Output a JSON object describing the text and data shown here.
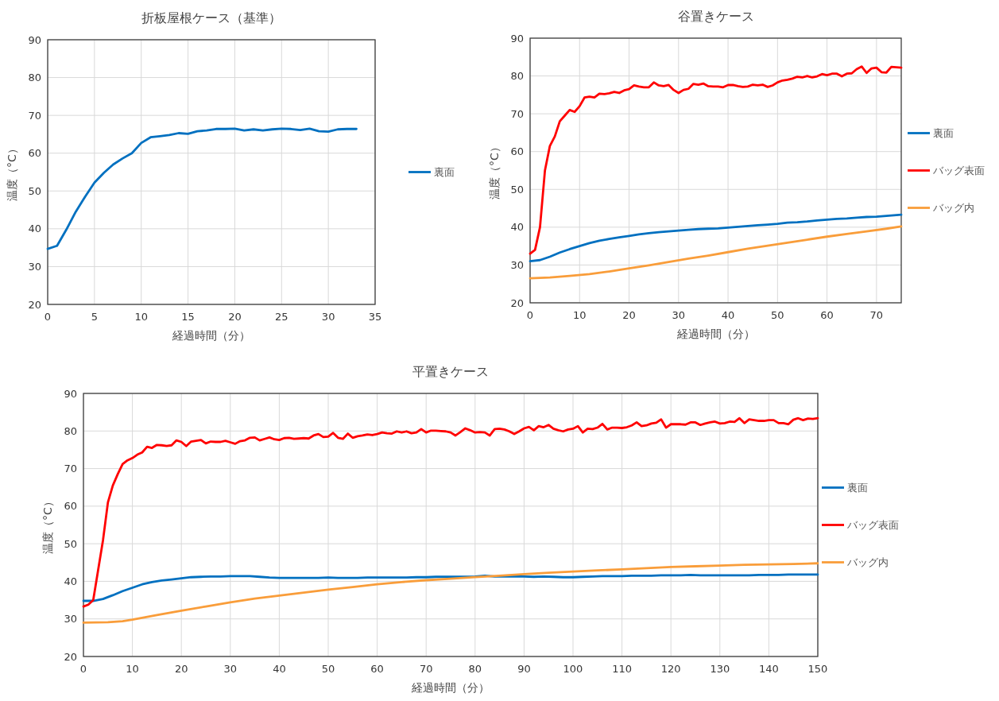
{
  "chart_data": [
    {
      "type": "line",
      "title": "折板屋根ケース（基準）",
      "xlabel": "経過時間（分）",
      "ylabel": "温度（°C）",
      "xlim": [
        0,
        35
      ],
      "xticks": [
        0,
        5,
        10,
        15,
        20,
        25,
        30,
        35
      ],
      "ylim": [
        20,
        90
      ],
      "yticks": [
        20,
        30,
        40,
        50,
        60,
        70,
        80,
        90
      ],
      "grid": true,
      "legend": "right",
      "series": [
        {
          "name": "裏面",
          "color": "#0070c0",
          "x": [
            0,
            1,
            2,
            3,
            4,
            5,
            6,
            7,
            8,
            9,
            10,
            11,
            12,
            13,
            14,
            15,
            16,
            17,
            18,
            19,
            20,
            21,
            22,
            23,
            24,
            25,
            26,
            27,
            28,
            29,
            30,
            31,
            32,
            33
          ],
          "values": [
            34.7,
            35.5,
            39.8,
            44.5,
            48.5,
            52.2,
            54.8,
            57,
            58.6,
            60,
            62.7,
            64.2,
            64.5,
            64.8,
            65.3,
            65.1,
            65.8,
            66,
            66.4,
            66.4,
            66.5,
            66,
            66.3,
            66,
            66.3,
            66.5,
            66.4,
            66.1,
            66.5,
            65.8,
            65.7,
            66.3,
            66.4,
            66.4
          ]
        }
      ]
    },
    {
      "type": "line",
      "title": "谷置きケース",
      "xlabel": "経過時間（分）",
      "ylabel": "温度（°C）",
      "xlim": [
        0,
        75
      ],
      "xticks": [
        0,
        10,
        20,
        30,
        40,
        50,
        60,
        70
      ],
      "ylim": [
        20,
        90
      ],
      "yticks": [
        20,
        30,
        40,
        50,
        60,
        70,
        80,
        90
      ],
      "grid": true,
      "legend": "right",
      "series": [
        {
          "name": "裏面",
          "color": "#0070c0",
          "x": [
            0,
            2,
            4,
            6,
            8,
            10,
            12,
            14,
            16,
            18,
            20,
            22,
            24,
            26,
            28,
            30,
            32,
            34,
            36,
            38,
            40,
            42,
            44,
            46,
            48,
            50,
            52,
            54,
            56,
            58,
            60,
            62,
            64,
            66,
            68,
            70,
            72,
            75
          ],
          "values": [
            31,
            31.3,
            32.2,
            33.3,
            34.2,
            35,
            35.8,
            36.4,
            36.9,
            37.3,
            37.7,
            38.1,
            38.4,
            38.7,
            38.9,
            39.1,
            39.3,
            39.5,
            39.6,
            39.7,
            39.9,
            40.1,
            40.3,
            40.5,
            40.7,
            40.9,
            41.2,
            41.3,
            41.5,
            41.8,
            42,
            42.2,
            42.3,
            42.5,
            42.7,
            42.8,
            43,
            43.3
          ]
        },
        {
          "name": "バッグ表面",
          "color": "#ff0000",
          "x": [
            0,
            1,
            2,
            3,
            4,
            5,
            6,
            7,
            8,
            9,
            10,
            11,
            12,
            13,
            14,
            15,
            16,
            17,
            18,
            19,
            20,
            21,
            22,
            23,
            24,
            25,
            26,
            27,
            28,
            29,
            30,
            31,
            32,
            33,
            34,
            35,
            36,
            37,
            38,
            39,
            40,
            41,
            42,
            43,
            44,
            45,
            46,
            47,
            48,
            49,
            50,
            51,
            52,
            53,
            54,
            55,
            56,
            57,
            58,
            59,
            60,
            61,
            62,
            63,
            64,
            65,
            66,
            67,
            68,
            69,
            70,
            71,
            72,
            73,
            74,
            75
          ],
          "values": [
            33,
            34,
            40,
            55,
            61.5,
            64,
            68,
            69.5,
            71,
            70.5,
            72,
            74.3,
            74.5,
            74.3,
            75.3,
            75.2,
            75.4,
            75.8,
            75.5,
            76.2,
            76.5,
            77.5,
            77.2,
            77,
            77,
            78.3,
            77.5,
            77.3,
            77.6,
            76.3,
            75.5,
            76.3,
            76.6,
            77.9,
            77.7,
            78,
            77.3,
            77.2,
            77.2,
            77,
            77.6,
            77.6,
            77.3,
            77.1,
            77.2,
            77.7,
            77.5,
            77.7,
            77.1,
            77.5,
            78.3,
            78.8,
            79,
            79.3,
            79.8,
            79.6,
            80,
            79.6,
            79.9,
            80.5,
            80.2,
            80.6,
            80.6,
            79.9,
            80.6,
            80.7,
            81.8,
            82.5,
            80.8,
            82,
            82.2,
            81,
            80.9,
            82.4,
            82.3,
            82.2
          ]
        },
        {
          "name": "バッグ内",
          "color": "#f99d3a",
          "x": [
            0,
            4,
            8,
            12,
            16,
            20,
            24,
            28,
            32,
            36,
            40,
            44,
            48,
            52,
            56,
            60,
            64,
            68,
            72,
            75
          ],
          "values": [
            26.5,
            26.7,
            27.1,
            27.6,
            28.3,
            29.1,
            29.9,
            30.8,
            31.7,
            32.5,
            33.4,
            34.3,
            35.1,
            35.9,
            36.7,
            37.5,
            38.2,
            38.9,
            39.6,
            40.2
          ]
        }
      ]
    },
    {
      "type": "line",
      "title": "平置きケース",
      "xlabel": "経過時間（分）",
      "ylabel": "温度（°C）",
      "xlim": [
        0,
        150
      ],
      "xticks": [
        0,
        10,
        20,
        30,
        40,
        50,
        60,
        70,
        80,
        90,
        100,
        110,
        120,
        130,
        140,
        150
      ],
      "ylim": [
        20,
        90
      ],
      "yticks": [
        20,
        30,
        40,
        50,
        60,
        70,
        80,
        90
      ],
      "grid": true,
      "legend": "right",
      "series": [
        {
          "name": "裏面",
          "color": "#0070c0",
          "x": [
            0,
            2,
            4,
            6,
            8,
            10,
            12,
            14,
            16,
            18,
            20,
            22,
            24,
            26,
            28,
            30,
            32,
            34,
            36,
            38,
            40,
            42,
            44,
            46,
            48,
            50,
            52,
            54,
            56,
            58,
            60,
            62,
            64,
            66,
            68,
            70,
            72,
            74,
            76,
            78,
            80,
            82,
            84,
            86,
            88,
            90,
            92,
            94,
            96,
            98,
            100,
            102,
            104,
            106,
            108,
            110,
            112,
            114,
            116,
            118,
            120,
            122,
            124,
            126,
            128,
            130,
            132,
            134,
            136,
            138,
            140,
            142,
            144,
            146,
            148,
            150
          ],
          "values": [
            34.8,
            34.8,
            35.3,
            36.3,
            37.4,
            38.3,
            39.2,
            39.8,
            40.2,
            40.5,
            40.8,
            41.1,
            41.2,
            41.3,
            41.3,
            41.4,
            41.4,
            41.4,
            41.2,
            41,
            40.9,
            40.9,
            40.9,
            40.9,
            40.9,
            41,
            40.9,
            40.9,
            40.9,
            41,
            41,
            41,
            41,
            41,
            41.1,
            41.1,
            41.2,
            41.2,
            41.2,
            41.2,
            41.3,
            41.5,
            41.3,
            41.3,
            41.3,
            41.3,
            41.2,
            41.3,
            41.2,
            41.1,
            41.1,
            41.2,
            41.3,
            41.4,
            41.4,
            41.4,
            41.5,
            41.5,
            41.5,
            41.6,
            41.6,
            41.6,
            41.7,
            41.6,
            41.6,
            41.6,
            41.6,
            41.6,
            41.6,
            41.7,
            41.7,
            41.7,
            41.8,
            41.8,
            41.8,
            41.8
          ]
        },
        {
          "name": "バッグ表面",
          "color": "#ff0000",
          "x": [
            0,
            1,
            2,
            3,
            4,
            5,
            6,
            7,
            8,
            9,
            10,
            11,
            12,
            13,
            14,
            15,
            16,
            17,
            18,
            19,
            20,
            21,
            22,
            23,
            24,
            25,
            26,
            27,
            28,
            29,
            30,
            31,
            32,
            33,
            34,
            35,
            36,
            37,
            38,
            39,
            40,
            41,
            42,
            43,
            44,
            45,
            46,
            47,
            48,
            49,
            50,
            51,
            52,
            53,
            54,
            55,
            56,
            57,
            58,
            59,
            60,
            61,
            62,
            63,
            64,
            65,
            66,
            67,
            68,
            69,
            70,
            71,
            72,
            73,
            74,
            75,
            76,
            77,
            78,
            79,
            80,
            81,
            82,
            83,
            84,
            85,
            86,
            87,
            88,
            89,
            90,
            91,
            92,
            93,
            94,
            95,
            96,
            97,
            98,
            99,
            100,
            101,
            102,
            103,
            104,
            105,
            106,
            107,
            108,
            109,
            110,
            111,
            112,
            113,
            114,
            115,
            116,
            117,
            118,
            119,
            120,
            121,
            122,
            123,
            124,
            125,
            126,
            127,
            128,
            129,
            130,
            131,
            132,
            133,
            134,
            135,
            136,
            137,
            138,
            139,
            140,
            141,
            142,
            143,
            144,
            145,
            146,
            147,
            148,
            149,
            150
          ],
          "values": [
            33.3,
            33.8,
            35,
            43,
            51,
            61,
            65.5,
            68.5,
            71.2,
            72.2,
            72.8,
            73.7,
            74.3,
            75.8,
            75.5,
            76.3,
            76.2,
            76,
            76.2,
            77.5,
            77.1,
            76,
            77.2,
            77.4,
            77.6,
            76.7,
            77.2,
            77.1,
            77.1,
            77.4,
            77,
            76.6,
            77.3,
            77.5,
            78.2,
            78.3,
            77.5,
            77.9,
            78.3,
            77.8,
            77.6,
            78.1,
            78.2,
            77.9,
            78,
            78.1,
            78,
            78.8,
            79.2,
            78.4,
            78.5,
            79.5,
            78.2,
            77.9,
            79.3,
            78.2,
            78.6,
            78.8,
            79.1,
            78.9,
            79.2,
            79.6,
            79.4,
            79.3,
            79.9,
            79.6,
            79.9,
            79.4,
            79.6,
            80.5,
            79.6,
            80.1,
            80.1,
            80,
            79.9,
            79.6,
            78.8,
            79.7,
            80.7,
            80.2,
            79.6,
            79.7,
            79.6,
            78.8,
            80.5,
            80.6,
            80.4,
            79.9,
            79.2,
            79.9,
            80.7,
            81.1,
            80.2,
            81.3,
            81,
            81.6,
            80.6,
            80.2,
            79.9,
            80.4,
            80.6,
            81.3,
            79.6,
            80.6,
            80.5,
            80.9,
            81.9,
            80.4,
            80.9,
            80.9,
            80.8,
            81,
            81.5,
            82.3,
            81.3,
            81.5,
            82,
            82.2,
            83.1,
            80.9,
            81.8,
            81.8,
            81.8,
            81.7,
            82.3,
            82.3,
            81.6,
            82,
            82.3,
            82.5,
            82,
            82.1,
            82.5,
            82.4,
            83.4,
            82.1,
            83.1,
            82.9,
            82.7,
            82.7,
            82.9,
            82.9,
            82.1,
            82.1,
            81.8,
            83,
            83.4,
            82.9,
            83.3,
            83.2,
            83.4
          ]
        },
        {
          "name": "バッグ内",
          "color": "#f99d3a",
          "x": [
            0,
            5,
            8,
            10,
            15,
            20,
            25,
            30,
            35,
            40,
            45,
            50,
            55,
            60,
            65,
            70,
            75,
            80,
            85,
            90,
            95,
            100,
            105,
            110,
            115,
            120,
            125,
            130,
            135,
            140,
            145,
            150
          ],
          "values": [
            29,
            29.1,
            29.4,
            29.8,
            31,
            32.2,
            33.3,
            34.4,
            35.4,
            36.2,
            37,
            37.8,
            38.5,
            39.2,
            39.8,
            40.3,
            40.7,
            41.1,
            41.5,
            41.9,
            42.3,
            42.6,
            42.9,
            43.2,
            43.5,
            43.8,
            44,
            44.2,
            44.4,
            44.5,
            44.6,
            44.8
          ]
        }
      ]
    }
  ]
}
